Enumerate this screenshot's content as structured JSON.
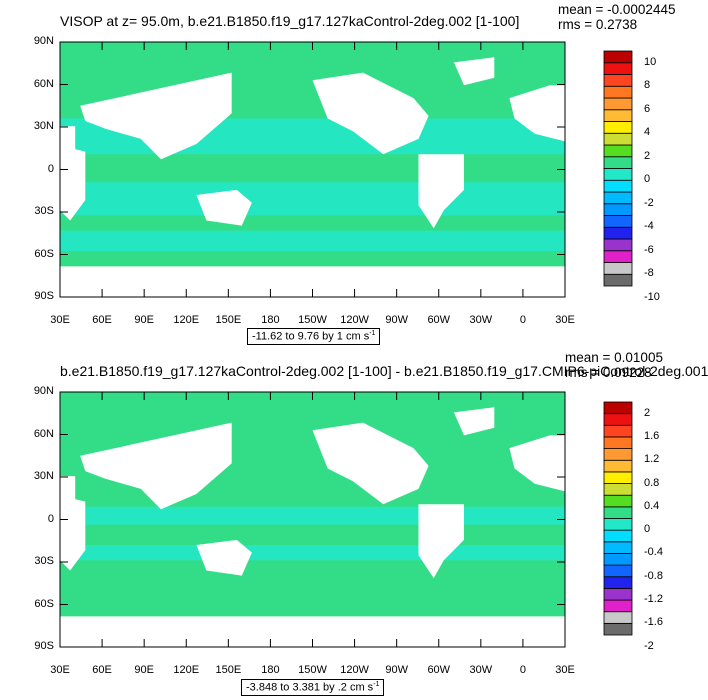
{
  "colors": {
    "land": "#ffffff",
    "ocean_main": "#33dd88",
    "ocean_alt": "#22e8c8",
    "frame": "#000000"
  },
  "palette": [
    "#6b6b6b",
    "#c8c8c8",
    "#e020c8",
    "#9933cc",
    "#2222ee",
    "#1166ff",
    "#0099ff",
    "#00bbff",
    "#00ddff",
    "#22e8c8",
    "#33dd88",
    "#55dd22",
    "#ccdd33",
    "#ffee00",
    "#ffbb33",
    "#ff9933",
    "#ff7722",
    "#ff4422",
    "#ee1111",
    "#bb0000"
  ],
  "panels": [
    {
      "title": "VISOP at z=  95.0m, b.e21.B1850.f19_g17.127kaControl-2deg.002 [1-100]",
      "mean": "mean = -0.0002445",
      "rms": "rms = 0.2738",
      "range": "-11.62 to 9.76 by 1 cm s",
      "range_exp": "-1",
      "colorbar_labels": [
        "10",
        "8",
        "6",
        "4",
        "2",
        "0",
        "-2",
        "-4",
        "-6",
        "-8",
        "-10"
      ]
    },
    {
      "title": "b.e21.B1850.f19_g17.127kaControl-2deg.002 [1-100] - b.e21.B1850.f19_g17.CMIP6-piControl-2deg.001",
      "mean": "mean = 0.01005",
      "rms": "rms = 0.09228",
      "range": "-3.848 to 3.381 by .2 cm s",
      "range_exp": "-1",
      "colorbar_labels": [
        "2",
        "1.6",
        "1.2",
        "0.8",
        "0.4",
        "0",
        "-0.4",
        "-0.8",
        "-1.2",
        "-1.6",
        "-2"
      ]
    }
  ],
  "axes": {
    "lat_labels": [
      "90N",
      "60N",
      "30N",
      "0",
      "30S",
      "60S",
      "90S"
    ],
    "lon_labels": [
      "30E",
      "60E",
      "90E",
      "120E",
      "150E",
      "180",
      "150W",
      "120W",
      "90W",
      "60W",
      "30W",
      "0",
      "30E"
    ]
  },
  "chart_data": [
    {
      "type": "heatmap",
      "title": "VISOP at z=  95.0m, b.e21.B1850.f19_g17.127kaControl-2deg.002 [1-100]",
      "x": "longitude 30E to 30E (360 degrees)",
      "y": "latitude 90S to 90N",
      "xlim": [
        30,
        390
      ],
      "ylim": [
        -90,
        90
      ],
      "levels": [
        -10,
        -9,
        -8,
        -7,
        -6,
        -5,
        -4,
        -3,
        -2,
        -1,
        0,
        1,
        2,
        3,
        4,
        5,
        6,
        7,
        8,
        9,
        10
      ],
      "units": "cm s-1",
      "mean": -0.0002445,
      "rms": 0.2738,
      "min": -11.62,
      "max": 9.76,
      "interval": 1
    },
    {
      "type": "heatmap",
      "title": "b.e21.B1850.f19_g17.127kaControl-2deg.002 [1-100] - b.e21.B1850.f19_g17.CMIP6-piControl-2deg.001",
      "x": "longitude 30E to 30E (360 degrees)",
      "y": "latitude 90S to 90N",
      "xlim": [
        30,
        390
      ],
      "ylim": [
        -90,
        90
      ],
      "levels": [
        -2,
        -1.8,
        -1.6,
        -1.4,
        -1.2,
        -1,
        -0.8,
        -0.6,
        -0.4,
        -0.2,
        0,
        0.2,
        0.4,
        0.6,
        0.8,
        1,
        1.2,
        1.4,
        1.6,
        1.8,
        2
      ],
      "units": "cm s-1",
      "mean": 0.01005,
      "rms": 0.09228,
      "min": -3.848,
      "max": 3.381,
      "interval": 0.2
    }
  ]
}
